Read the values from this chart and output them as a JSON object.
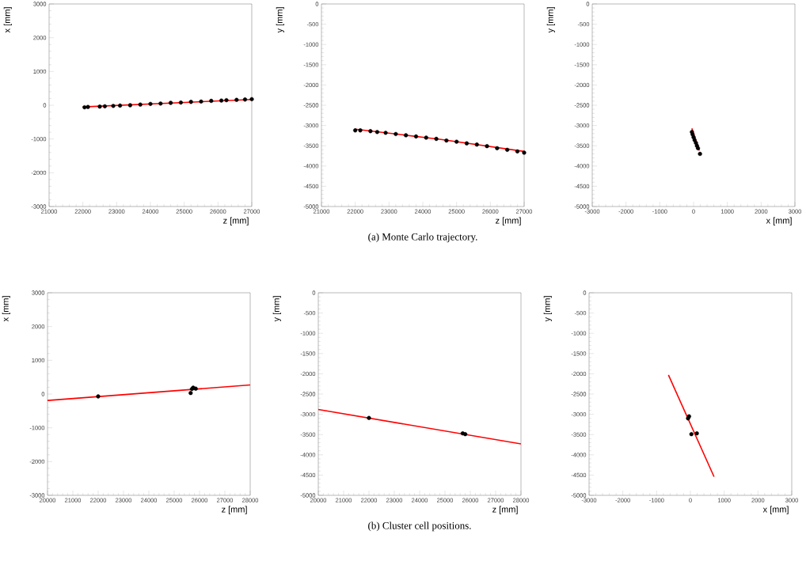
{
  "chart_data": [
    {
      "type": "scatter",
      "xlabel": "z [mm]",
      "ylabel": "x [mm]",
      "xlim": [
        21000,
        27000
      ],
      "ylim": [
        -3000,
        3000
      ],
      "xticks": [
        21000,
        22000,
        23000,
        24000,
        25000,
        26000,
        27000
      ],
      "yticks": [
        -3000,
        -2000,
        -1000,
        0,
        1000,
        2000,
        3000
      ],
      "grid": false,
      "series": [
        {
          "marker": "circle",
          "color": "#000000",
          "x": [
            22050,
            22150,
            22500,
            22650,
            22900,
            23100,
            23400,
            23700,
            24000,
            24300,
            24600,
            24900,
            25200,
            25500,
            25800,
            26100,
            26250,
            26550,
            26800,
            27000
          ],
          "values": [
            -60,
            -50,
            -40,
            -30,
            -20,
            -10,
            0,
            20,
            40,
            50,
            70,
            80,
            100,
            110,
            130,
            140,
            150,
            160,
            170,
            180
          ]
        },
        {
          "type": "line",
          "color": "#ff0000",
          "x": [
            22000,
            27000
          ],
          "values": [
            -50,
            170
          ]
        }
      ]
    },
    {
      "type": "scatter",
      "xlabel": "z [mm]",
      "ylabel": "y [mm]",
      "xlim": [
        21000,
        27000
      ],
      "ylim": [
        -5000,
        0
      ],
      "xticks": [
        21000,
        22000,
        23000,
        24000,
        25000,
        26000,
        27000
      ],
      "yticks": [
        -5000,
        -4500,
        -4000,
        -3500,
        -3000,
        -2500,
        -2000,
        -1500,
        -1000,
        -500,
        0
      ],
      "grid": false,
      "annotations": [
        "(a) Monte Carlo trajectory."
      ],
      "series": [
        {
          "marker": "circle",
          "color": "#000000",
          "x": [
            22000,
            22150,
            22450,
            22650,
            22900,
            23200,
            23500,
            23800,
            24100,
            24400,
            24700,
            25000,
            25300,
            25600,
            25900,
            26200,
            26500,
            26800,
            27000
          ],
          "values": [
            -3120,
            -3120,
            -3140,
            -3160,
            -3180,
            -3210,
            -3240,
            -3270,
            -3300,
            -3330,
            -3370,
            -3400,
            -3440,
            -3470,
            -3510,
            -3560,
            -3600,
            -3640,
            -3670
          ]
        },
        {
          "type": "line",
          "color": "#ff0000",
          "x": [
            22000,
            24500,
            27000
          ],
          "values": [
            -3090,
            -3340,
            -3640
          ]
        }
      ]
    },
    {
      "type": "scatter",
      "xlabel": "x [mm]",
      "ylabel": "y [mm]",
      "xlim": [
        -3000,
        3000
      ],
      "ylim": [
        -5000,
        0
      ],
      "xticks": [
        -3000,
        -2000,
        -1000,
        0,
        1000,
        2000,
        3000
      ],
      "yticks": [
        -5000,
        -4500,
        -4000,
        -3500,
        -3000,
        -2500,
        -2000,
        -1500,
        -1000,
        -500,
        0
      ],
      "grid": false,
      "series": [
        {
          "marker": "circle",
          "color": "#000000",
          "x": [
            -50,
            -30,
            0,
            30,
            70,
            100,
            130,
            190
          ],
          "values": [
            -3160,
            -3220,
            -3290,
            -3360,
            -3430,
            -3500,
            -3560,
            -3700
          ]
        },
        {
          "type": "line",
          "color": "#ff0000",
          "x": [
            -50,
            170
          ],
          "values": [
            -3070,
            -3620
          ]
        }
      ]
    },
    {
      "type": "scatter",
      "xlabel": "z [mm]",
      "ylabel": "x [mm]",
      "xlim": [
        20000,
        28000
      ],
      "ylim": [
        -3000,
        3000
      ],
      "xticks": [
        20000,
        21000,
        22000,
        23000,
        24000,
        25000,
        26000,
        27000,
        28000
      ],
      "yticks": [
        -3000,
        -2000,
        -1000,
        0,
        1000,
        2000,
        3000
      ],
      "grid": false,
      "series": [
        {
          "marker": "circle",
          "color": "#000000",
          "x": [
            22000,
            25650,
            25700,
            25750,
            25850
          ],
          "values": [
            -70,
            30,
            150,
            190,
            160
          ]
        },
        {
          "type": "line",
          "color": "#ff0000",
          "x": [
            20000,
            28000
          ],
          "values": [
            -190,
            270
          ]
        }
      ]
    },
    {
      "type": "scatter",
      "xlabel": "z [mm]",
      "ylabel": "y [mm]",
      "xlim": [
        20000,
        28000
      ],
      "ylim": [
        -5000,
        0
      ],
      "xticks": [
        20000,
        21000,
        22000,
        23000,
        24000,
        25000,
        26000,
        27000,
        28000
      ],
      "yticks": [
        -5000,
        -4500,
        -4000,
        -3500,
        -3000,
        -2500,
        -2000,
        -1500,
        -1000,
        -500,
        0
      ],
      "grid": false,
      "annotations": [
        "(b) Cluster cell positions."
      ],
      "series": [
        {
          "marker": "circle",
          "color": "#000000",
          "x": [
            22000,
            25700,
            25800
          ],
          "values": [
            -3090,
            -3470,
            -3490
          ]
        },
        {
          "type": "line",
          "color": "#ff0000",
          "x": [
            20000,
            28000
          ],
          "values": [
            -2880,
            -3730
          ]
        }
      ]
    },
    {
      "type": "scatter",
      "xlabel": "x [mm]",
      "ylabel": "y [mm]",
      "xlim": [
        -3000,
        3000
      ],
      "ylim": [
        -5000,
        0
      ],
      "xticks": [
        -3000,
        -2000,
        -1000,
        0,
        1000,
        2000,
        3000
      ],
      "yticks": [
        -5000,
        -4500,
        -4000,
        -3500,
        -3000,
        -2500,
        -2000,
        -1500,
        -1000,
        -500,
        0
      ],
      "grid": false,
      "series": [
        {
          "marker": "circle",
          "color": "#000000",
          "x": [
            -70,
            -40,
            30,
            190
          ],
          "values": [
            -3100,
            -3050,
            -3490,
            -3470
          ]
        },
        {
          "type": "line",
          "color": "#ff0000",
          "x": [
            -650,
            700
          ],
          "values": [
            -2030,
            -4540
          ]
        }
      ]
    }
  ]
}
